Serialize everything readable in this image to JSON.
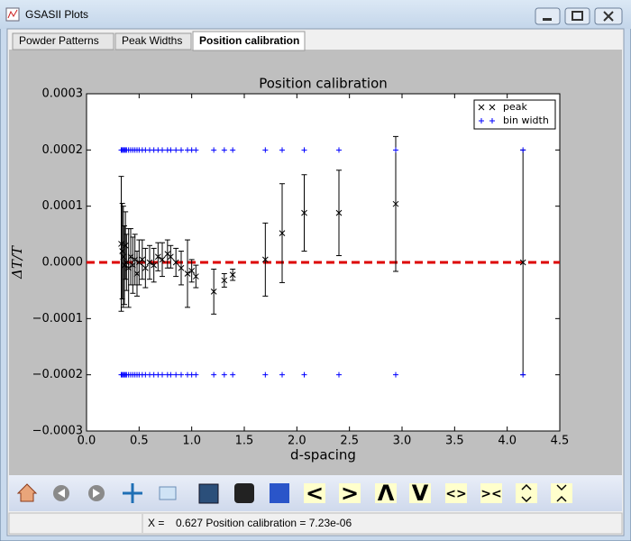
{
  "window": {
    "title": "GSASII Plots"
  },
  "tabs": [
    "Powder Patterns",
    "Peak Widths",
    "Position calibration"
  ],
  "active_tab": 2,
  "toolbar": {
    "buttons": [
      "<",
      ">",
      "Λ",
      "V",
      "<>",
      "><"
    ]
  },
  "status": {
    "x_label": "X =",
    "text": "0.627 Position calibration = 7.23e-06"
  },
  "chart_data": {
    "type": "scatter",
    "title": "Position calibration",
    "xlabel": "d-spacing",
    "ylabel": "ΔT/T",
    "x": [
      0.33,
      0.34,
      0.35,
      0.36,
      0.37,
      0.38,
      0.4,
      0.42,
      0.44,
      0.46,
      0.48,
      0.5,
      0.53,
      0.56,
      0.6,
      0.64,
      0.68,
      0.72,
      0.77,
      0.8,
      0.85,
      0.9,
      0.96,
      1.0,
      1.04,
      1.21,
      1.31,
      1.39,
      1.7,
      1.86,
      2.07,
      2.4,
      2.94,
      4.15
    ],
    "series": [
      {
        "name": "peak",
        "color": "#000000",
        "marker": "x",
        "values": [
          3.3e-05,
          2e-05,
          1e-05,
          -5e-06,
          3e-05,
          0.0,
          -1e-05,
          1e-05,
          -5e-06,
          5e-06,
          -2e-05,
          0.0,
          5e-06,
          -1e-05,
          0.0,
          -5e-06,
          1e-05,
          5e-06,
          1.5e-05,
          1e-05,
          0.0,
          -1e-05,
          -2e-05,
          -1.5e-05,
          -2.5e-05,
          -5.2e-05,
          -3.2e-05,
          -2.2e-05,
          5e-06,
          5.2e-05,
          8.8e-05,
          8.8e-05,
          0.000104,
          0.0
        ],
        "errors": [
          0.00012,
          8.5e-05,
          9e-05,
          7e-05,
          6e-05,
          5e-05,
          7e-05,
          5e-05,
          5e-05,
          4.5e-05,
          4e-05,
          4e-05,
          3.5e-05,
          3.5e-05,
          3e-05,
          3e-05,
          2.5e-05,
          3e-05,
          2.5e-05,
          2e-05,
          2.5e-05,
          3e-05,
          6e-05,
          2e-05,
          2e-05,
          4e-05,
          1.2e-05,
          1e-05,
          6.5e-05,
          8.8e-05,
          6.8e-05,
          7.6e-05,
          0.00012,
          0.0002
        ]
      },
      {
        "name": "bin width",
        "color": "#0000ff",
        "marker": "+",
        "values": [
          0.0002,
          0.0002,
          0.0002,
          0.0002,
          0.0002,
          0.0002,
          0.0002,
          0.0002,
          0.0002,
          0.0002,
          0.0002,
          0.0002,
          0.0002,
          0.0002,
          0.0002,
          0.0002,
          0.0002,
          0.0002,
          0.0002,
          0.0002,
          0.0002,
          0.0002,
          0.0002,
          0.0002,
          0.0002,
          0.0002,
          0.0002,
          0.0002,
          0.0002,
          0.0002,
          0.0002,
          0.0002,
          0.0002,
          0.0002
        ],
        "lower": [
          -0.0002,
          -0.0002,
          -0.0002,
          -0.0002,
          -0.0002,
          -0.0002,
          -0.0002,
          -0.0002,
          -0.0002,
          -0.0002,
          -0.0002,
          -0.0002,
          -0.0002,
          -0.0002,
          -0.0002,
          -0.0002,
          -0.0002,
          -0.0002,
          -0.0002,
          -0.0002,
          -0.0002,
          -0.0002,
          -0.0002,
          -0.0002,
          -0.0002,
          -0.0002,
          -0.0002,
          -0.0002,
          -0.0002,
          -0.0002,
          -0.0002,
          -0.0002,
          -0.0002,
          -0.0002
        ]
      }
    ],
    "hline": {
      "value": 0,
      "color": "#dd0000",
      "style": "dashed"
    },
    "xlim": [
      0,
      4.5
    ],
    "ylim": [
      -0.0003,
      0.0003
    ],
    "xticks": [
      {
        "value": 0,
        "label": "0.0"
      },
      0.5,
      {
        "value": 1,
        "label": "1.0"
      },
      1.5,
      {
        "value": 2,
        "label": "2.0"
      },
      2.5,
      {
        "value": 3,
        "label": "3.0"
      },
      3.5,
      {
        "value": 4,
        "label": "4.0"
      },
      4.5
    ],
    "yticks": [
      {
        "value": -0.0003,
        "label": "−0.0003"
      },
      {
        "value": -0.0002,
        "label": "−0.0002"
      },
      {
        "value": -0.0001,
        "label": "−0.0001"
      },
      {
        "value": 0,
        "label": "0.0000"
      },
      0.0001,
      0.0002,
      0.0003
    ],
    "legend": "upper right",
    "grid": false
  }
}
